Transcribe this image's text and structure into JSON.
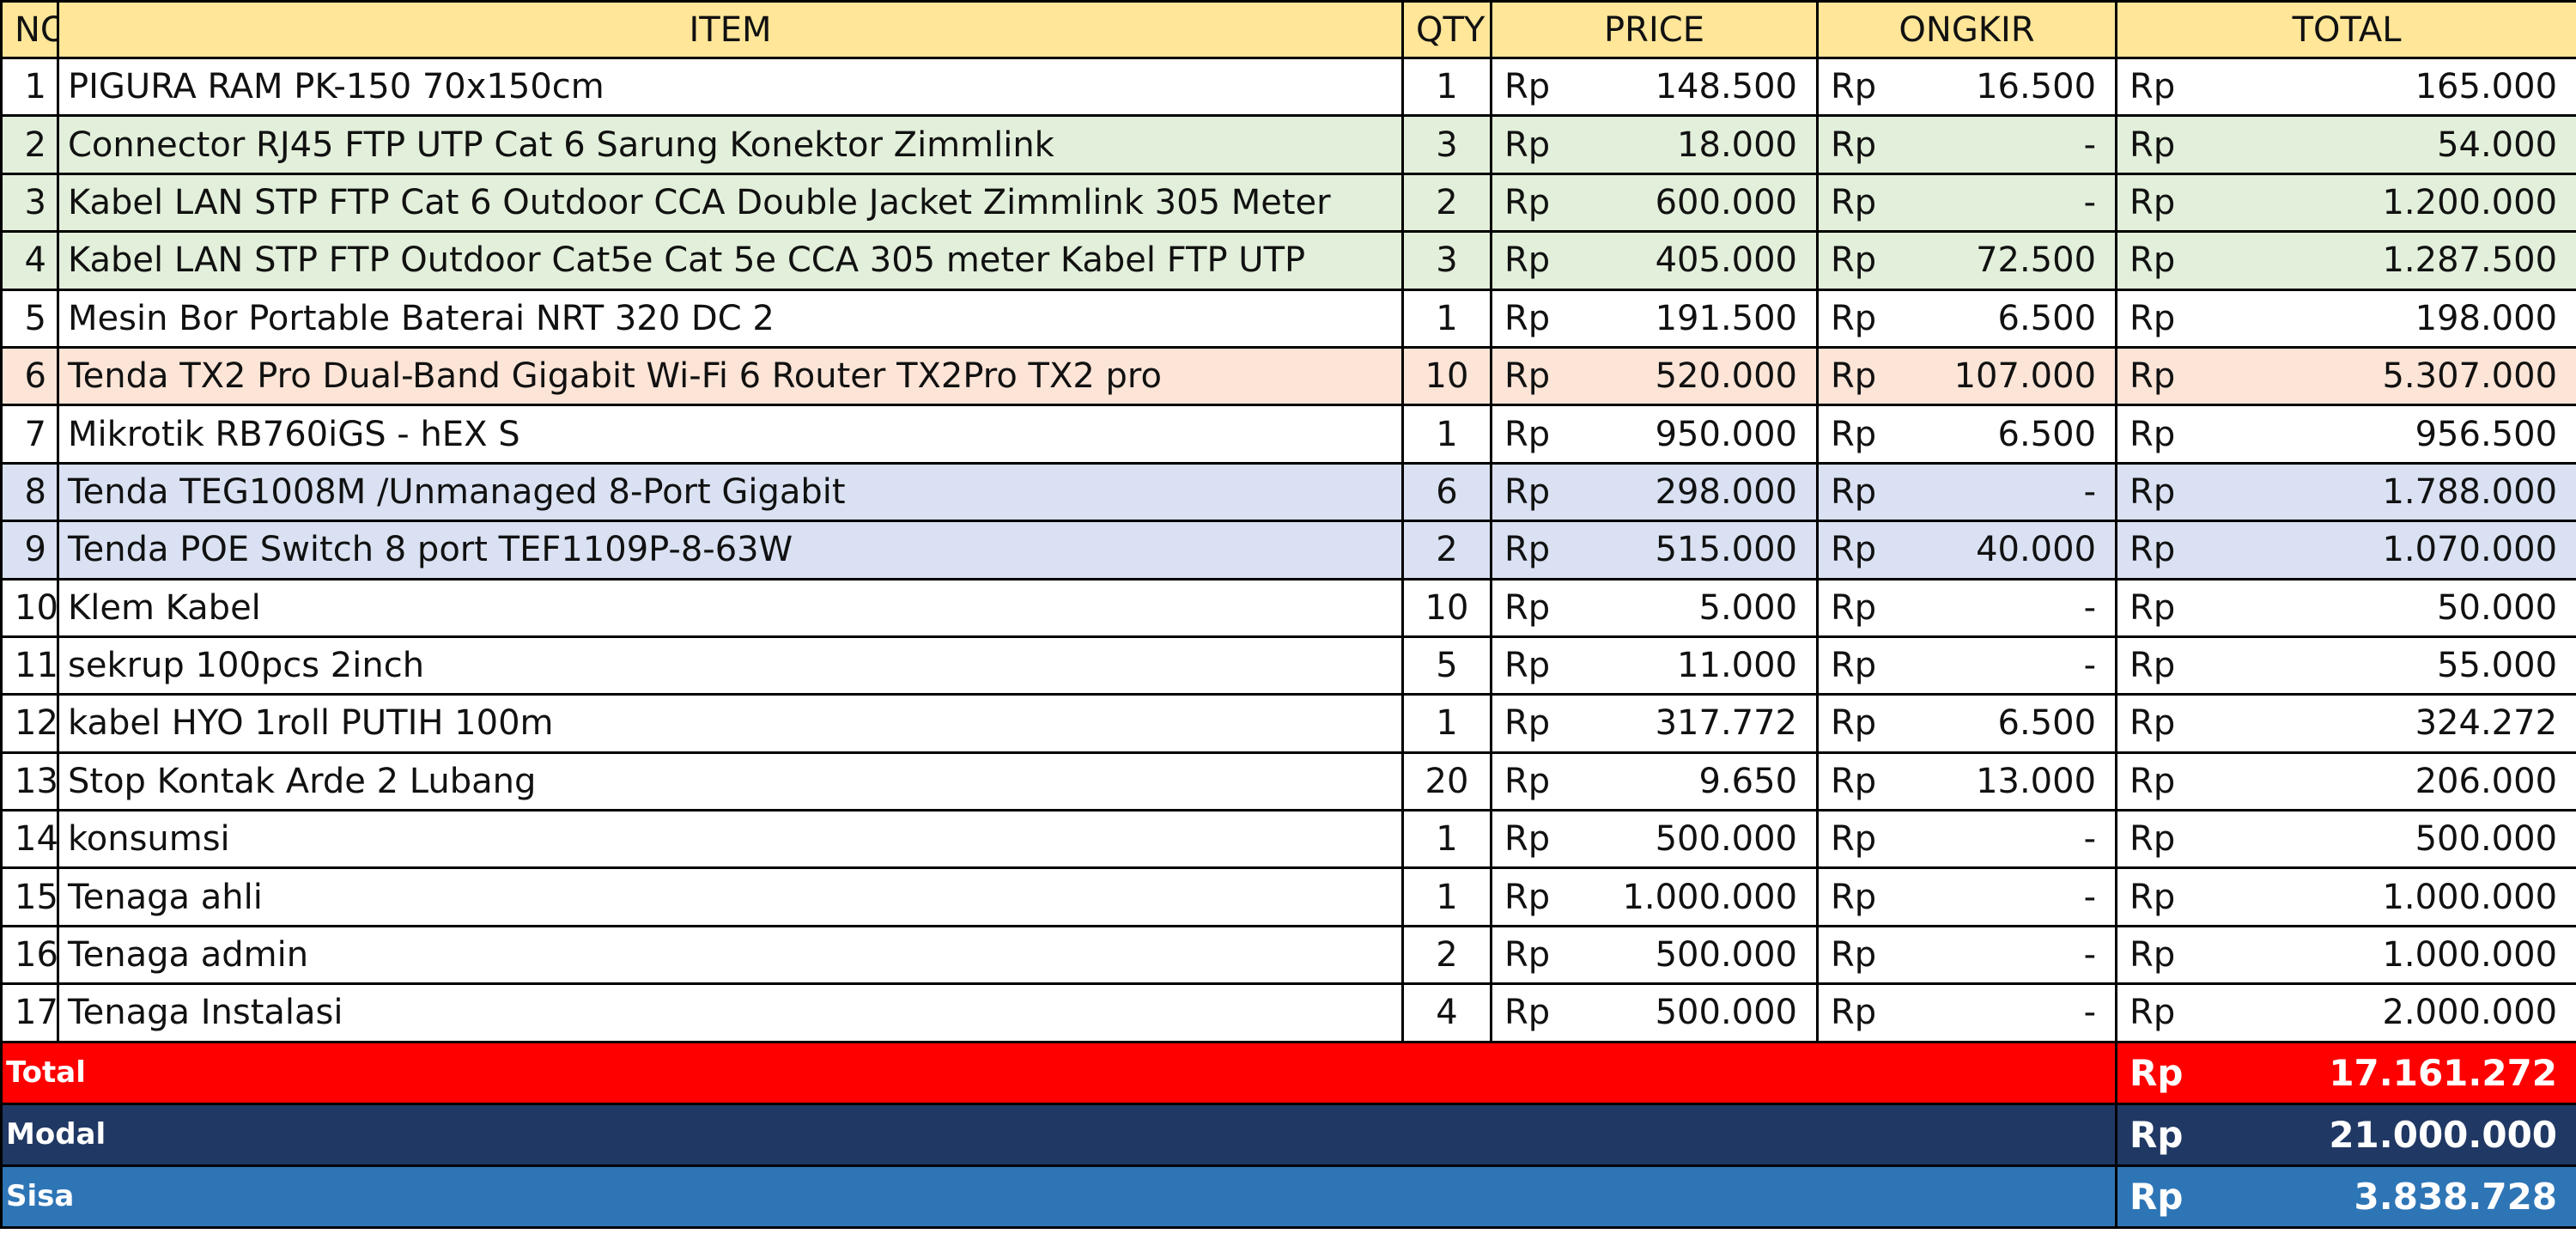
{
  "headers": {
    "no": "NO",
    "item": "ITEM",
    "qty": "QTY",
    "price": "PRICE",
    "ongkir": "ONGKIR",
    "total": "TOTAL"
  },
  "currency": "Rp",
  "rows": [
    {
      "no": "1",
      "item": "PIGURA RAM PK-150 70x150cm",
      "qty": "1",
      "price": "148.500",
      "ongkir": "16.500",
      "total": "165.000",
      "color": "#ffffff"
    },
    {
      "no": "2",
      "item": "Connector RJ45 FTP UTP Cat 6 Sarung Konektor Zimmlink",
      "qty": "3",
      "price": "18.000",
      "ongkir": "-",
      "total": "54.000",
      "color": "#e2efda"
    },
    {
      "no": "3",
      "item": "Kabel LAN STP FTP Cat 6 Outdoor CCA Double Jacket Zimmlink 305 Meter",
      "qty": "2",
      "price": "600.000",
      "ongkir": "-",
      "total": "1.200.000",
      "color": "#e2efda"
    },
    {
      "no": "4",
      "item": "Kabel LAN STP FTP Outdoor Cat5e Cat 5e CCA 305 meter Kabel FTP UTP",
      "qty": "3",
      "price": "405.000",
      "ongkir": "72.500",
      "total": "1.287.500",
      "color": "#e2efda"
    },
    {
      "no": "5",
      "item": "Mesin Bor Portable Baterai NRT 320 DC 2",
      "qty": "1",
      "price": "191.500",
      "ongkir": "6.500",
      "total": "198.000",
      "color": "#ffffff"
    },
    {
      "no": "6",
      "item": "Tenda TX2 Pro Dual-Band Gigabit Wi-Fi 6 Router TX2Pro TX2 pro",
      "qty": "10",
      "price": "520.000",
      "ongkir": "107.000",
      "total": "5.307.000",
      "color": "#fce4d6"
    },
    {
      "no": "7",
      "item": "Mikrotik RB760iGS - hEX S",
      "qty": "1",
      "price": "950.000",
      "ongkir": "6.500",
      "total": "956.500",
      "color": "#ffffff"
    },
    {
      "no": "8",
      "item": "Tenda TEG1008M /Unmanaged 8-Port Gigabit",
      "qty": "6",
      "price": "298.000",
      "ongkir": "-",
      "total": "1.788.000",
      "color": "#d9e1f2"
    },
    {
      "no": "9",
      "item": "Tenda POE Switch 8 port TEF1109P-8-63W",
      "qty": "2",
      "price": "515.000",
      "ongkir": "40.000",
      "total": "1.070.000",
      "color": "#d9e1f2"
    },
    {
      "no": "10",
      "item": "Klem Kabel",
      "qty": "10",
      "price": "5.000",
      "ongkir": "-",
      "total": "50.000",
      "color": "#ffffff"
    },
    {
      "no": "11",
      "item": "sekrup 100pcs 2inch",
      "qty": "5",
      "price": "11.000",
      "ongkir": "-",
      "total": "55.000",
      "color": "#ffffff"
    },
    {
      "no": "12",
      "item": "kabel HYO 1roll PUTIH 100m",
      "qty": "1",
      "price": "317.772",
      "ongkir": "6.500",
      "total": "324.272",
      "color": "#ffffff"
    },
    {
      "no": "13",
      "item": "Stop Kontak Arde 2 Lubang",
      "qty": "20",
      "price": "9.650",
      "ongkir": "13.000",
      "total": "206.000",
      "color": "#ffffff"
    },
    {
      "no": "14",
      "item": "konsumsi",
      "qty": "1",
      "price": "500.000",
      "ongkir": "-",
      "total": "500.000",
      "color": "#ffffff"
    },
    {
      "no": "15",
      "item": "Tenaga ahli",
      "qty": "1",
      "price": "1.000.000",
      "ongkir": "-",
      "total": "1.000.000",
      "color": "#ffffff"
    },
    {
      "no": "16",
      "item": "Tenaga admin",
      "qty": "2",
      "price": "500.000",
      "ongkir": "-",
      "total": "1.000.000",
      "color": "#ffffff"
    },
    {
      "no": "17",
      "item": "Tenaga Instalasi",
      "qty": "4",
      "price": "500.000",
      "ongkir": "-",
      "total": "2.000.000",
      "color": "#ffffff"
    }
  ],
  "summary": {
    "total": {
      "label": "Total",
      "value": "17.161.272",
      "color": "#ff0000"
    },
    "modal": {
      "label": "Modal",
      "value": "21.000.000",
      "color": "#203864"
    },
    "sisa": {
      "label": "Sisa",
      "value": "3.838.728",
      "color": "#2e75b6"
    }
  }
}
